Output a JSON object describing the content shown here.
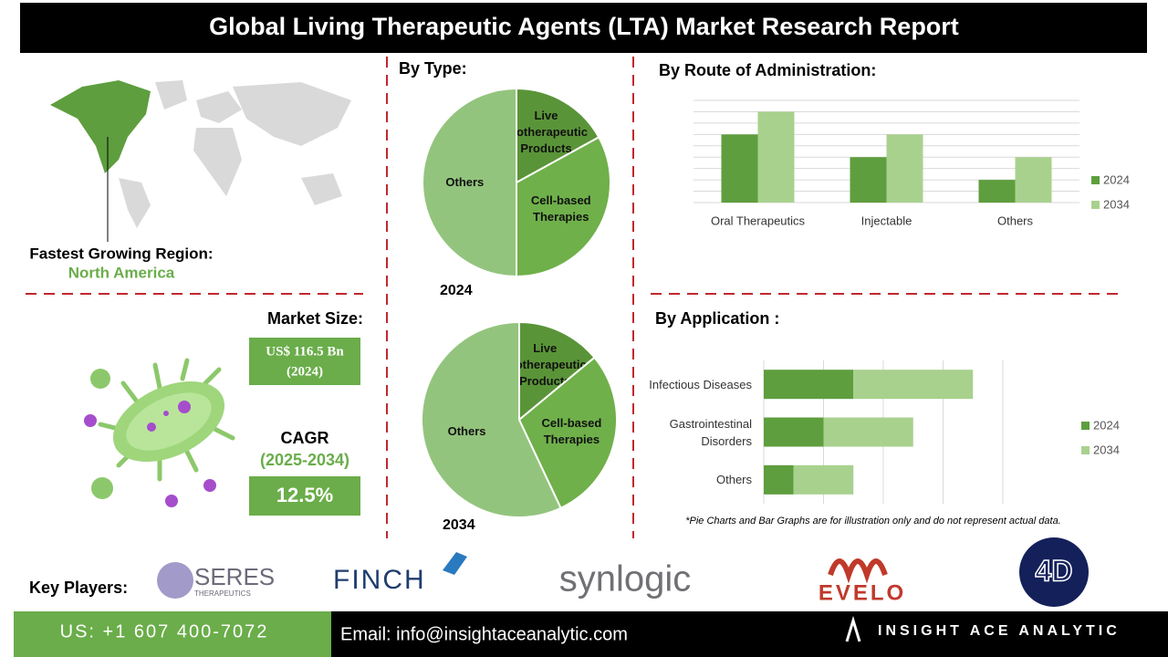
{
  "header": {
    "title": "Global Living Therapeutic Agents (LTA) Market Research Report"
  },
  "region": {
    "label": "Fastest Growing Region:",
    "value": "North America"
  },
  "market_size": {
    "label": "Market Size:",
    "value": "US$ 116.5 Bn",
    "year": "(2024)"
  },
  "cagr": {
    "label": "CAGR",
    "period": "(2025-2034)",
    "value": "12.5%"
  },
  "chart_data": [
    {
      "type": "pie",
      "title": "By Type:",
      "label": "2024",
      "categories": [
        "Live Biotherapeutic Products",
        "Cell-based Therapies",
        "Others"
      ],
      "values": [
        17,
        33,
        50
      ],
      "colors": [
        "#5a9438",
        "#6fb04a",
        "#93c47d"
      ]
    },
    {
      "type": "pie",
      "label": "2034",
      "categories": [
        "Live Biotherapeutic Products",
        "Cell-based Therapies",
        "Others"
      ],
      "values": [
        14,
        29,
        57
      ],
      "colors": [
        "#5a9438",
        "#6fb04a",
        "#93c47d"
      ]
    },
    {
      "type": "bar",
      "title": "By  Route of Administration:",
      "categories": [
        "Oral Therapeutics",
        "Injectable",
        "Others"
      ],
      "series": [
        {
          "name": "2024",
          "color": "#5e9e3e",
          "values": [
            6,
            4,
            2
          ]
        },
        {
          "name": "2034",
          "color": "#a9d18e",
          "values": [
            8,
            6,
            4
          ]
        }
      ],
      "ylim": [
        0,
        9
      ],
      "yticks": [
        0,
        1,
        2,
        3,
        4,
        5,
        6,
        7,
        8,
        9
      ],
      "grid": true,
      "legend": "right"
    },
    {
      "type": "barh_stacked",
      "title": "By Application :",
      "categories": [
        "Infectious Diseases",
        "Gastrointestinal Disorders",
        "Others"
      ],
      "series": [
        {
          "name": "2024",
          "color": "#5e9e3e",
          "values": [
            1.5,
            1.0,
            0.5
          ]
        },
        {
          "name": "2034",
          "color": "#a9d18e",
          "values": [
            2.0,
            1.5,
            1.0
          ]
        }
      ],
      "xlim": [
        0,
        4
      ],
      "xticks": [
        0,
        1,
        2,
        3,
        4
      ],
      "grid": true,
      "legend": "right"
    }
  ],
  "note": "*Pie Charts and Bar Graphs are for illustration only and do not represent actual data.",
  "key_players": {
    "label": "Key Players:",
    "names": [
      "SERES",
      "THERAPEUTICS",
      "FINCH",
      "synlogic",
      "EVELO",
      "4D"
    ]
  },
  "footer": {
    "phone": "US: +1 607 400-7072",
    "email": "Email: info@insightaceanalytic.com",
    "brand": "INSIGHT ACE ANALYTIC"
  }
}
